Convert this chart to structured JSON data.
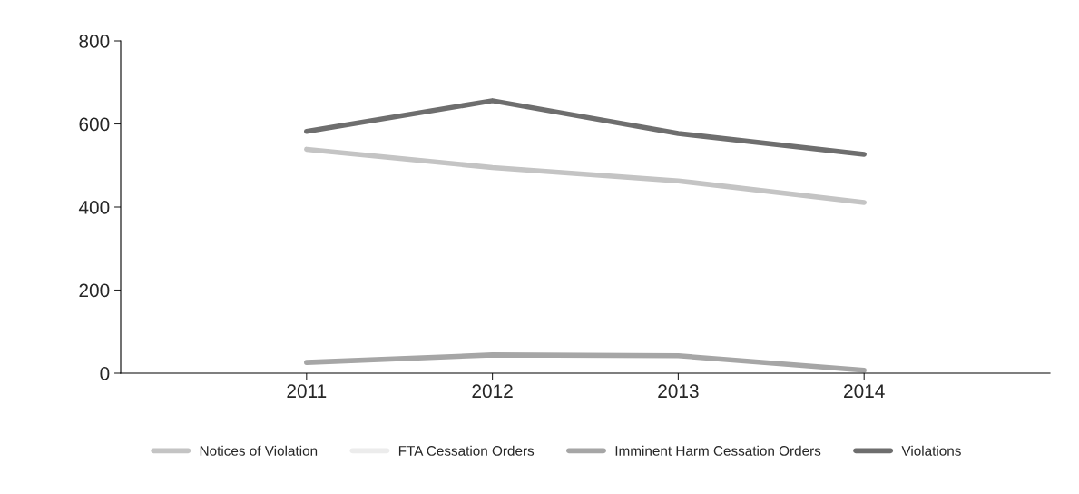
{
  "chart_data": {
    "type": "line",
    "categories": [
      "2011",
      "2012",
      "2013",
      "2014"
    ],
    "series": [
      {
        "name": "Notices of Violation",
        "color": "#c4c4c4",
        "values": [
          539,
          495,
          463,
          411
        ]
      },
      {
        "name": "FTA Cessation Orders",
        "color": "#ececec",
        "values": [
          null,
          null,
          null,
          null
        ]
      },
      {
        "name": "Imminent Harm Cessation Orders",
        "color": "#a6a6a6",
        "values": [
          26,
          44,
          42,
          7
        ]
      },
      {
        "name": "Violations",
        "color": "#6e6e6e",
        "values": [
          582,
          656,
          577,
          527
        ]
      }
    ],
    "ylim": [
      0,
      800
    ],
    "yticks": [
      0,
      200,
      400,
      600,
      800
    ],
    "grid": false,
    "legend": "bottom",
    "marker": "none",
    "line_style": "solid"
  }
}
